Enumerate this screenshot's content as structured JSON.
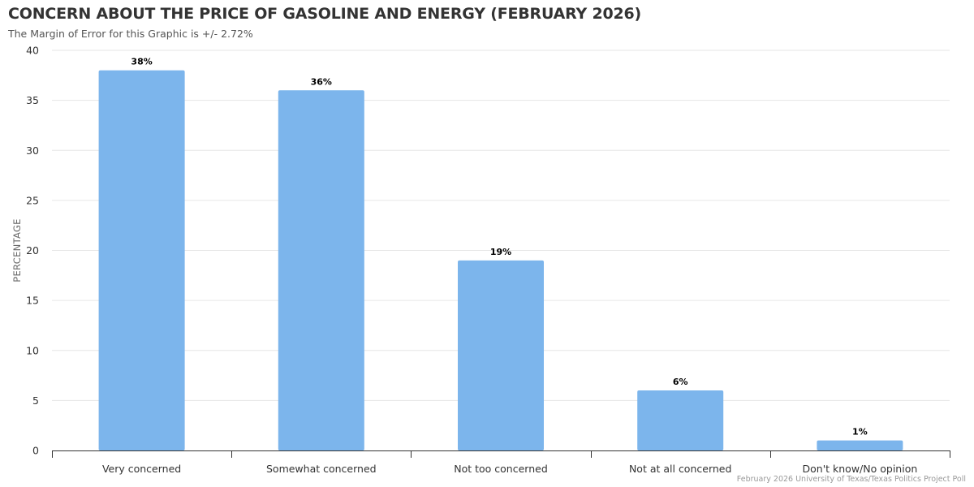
{
  "colors": {
    "bar": "#7cb5ec",
    "grid": "#e6e6e6",
    "axis": "#333333"
  },
  "chart_data": {
    "type": "bar",
    "title": "CONCERN ABOUT THE PRICE OF GASOLINE AND ENERGY (FEBRUARY 2026)",
    "subtitle": "The Margin of Error for this Graphic is +/- 2.72%",
    "credit": "February 2026 University of Texas/Texas Politics Project Poll",
    "xlabel": "",
    "ylabel": "PERCENTAGE",
    "ylim": [
      0,
      40
    ],
    "yticks": [
      0,
      5,
      10,
      15,
      20,
      25,
      30,
      35,
      40
    ],
    "grid": true,
    "legend": "none",
    "categories": [
      "Very concerned",
      "Somewhat concerned",
      "Not too concerned",
      "Not at all concerned",
      "Don't know/No opinion"
    ],
    "values": [
      38,
      36,
      19,
      6,
      1
    ],
    "data_labels": [
      "38%",
      "36%",
      "19%",
      "6%",
      "1%"
    ]
  }
}
